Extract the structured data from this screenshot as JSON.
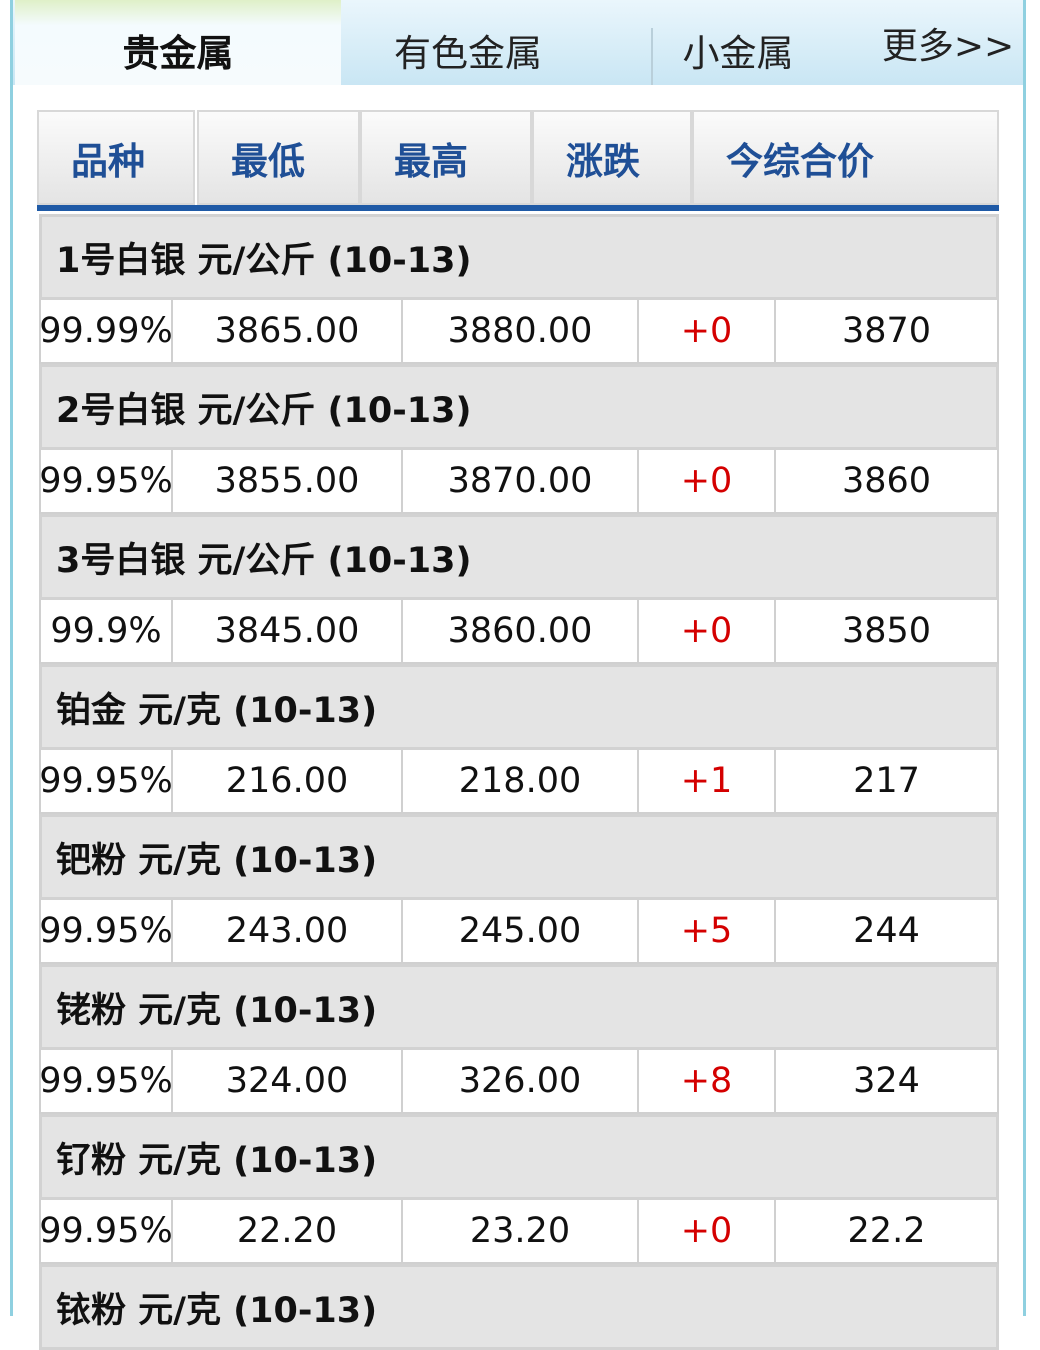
{
  "tabs": [
    "贵金属",
    "有色金属",
    "小金属",
    "更多>>"
  ],
  "active_tab": 0,
  "columns": [
    "品种",
    "最低",
    "最高",
    "涨跌",
    "今综合价"
  ],
  "colors": {
    "header_text": "#1f4f96",
    "change": "#d40000",
    "accent_bar": "#1f5aa6"
  },
  "groups": [
    {
      "title": "1号白银 元/公斤 (10-13)",
      "row": [
        "99.99%",
        "3865.00",
        "3880.00",
        "+0",
        "3870"
      ]
    },
    {
      "title": "2号白银 元/公斤 (10-13)",
      "row": [
        "99.95%",
        "3855.00",
        "3870.00",
        "+0",
        "3860"
      ]
    },
    {
      "title": "3号白银 元/公斤 (10-13)",
      "row": [
        "99.9%",
        "3845.00",
        "3860.00",
        "+0",
        "3850"
      ]
    },
    {
      "title": "铂金 元/克 (10-13)",
      "row": [
        "99.95%",
        "216.00",
        "218.00",
        "+1",
        "217"
      ]
    },
    {
      "title": "钯粉 元/克 (10-13)",
      "row": [
        "99.95%",
        "243.00",
        "245.00",
        "+5",
        "244"
      ]
    },
    {
      "title": "铑粉 元/克 (10-13)",
      "row": [
        "99.95%",
        "324.00",
        "326.00",
        "+8",
        "324"
      ]
    },
    {
      "title": "钌粉 元/克 (10-13)",
      "row": [
        "99.95%",
        "22.20",
        "23.20",
        "+0",
        "22.2"
      ]
    },
    {
      "title": "铱粉 元/克 (10-13)"
    }
  ]
}
